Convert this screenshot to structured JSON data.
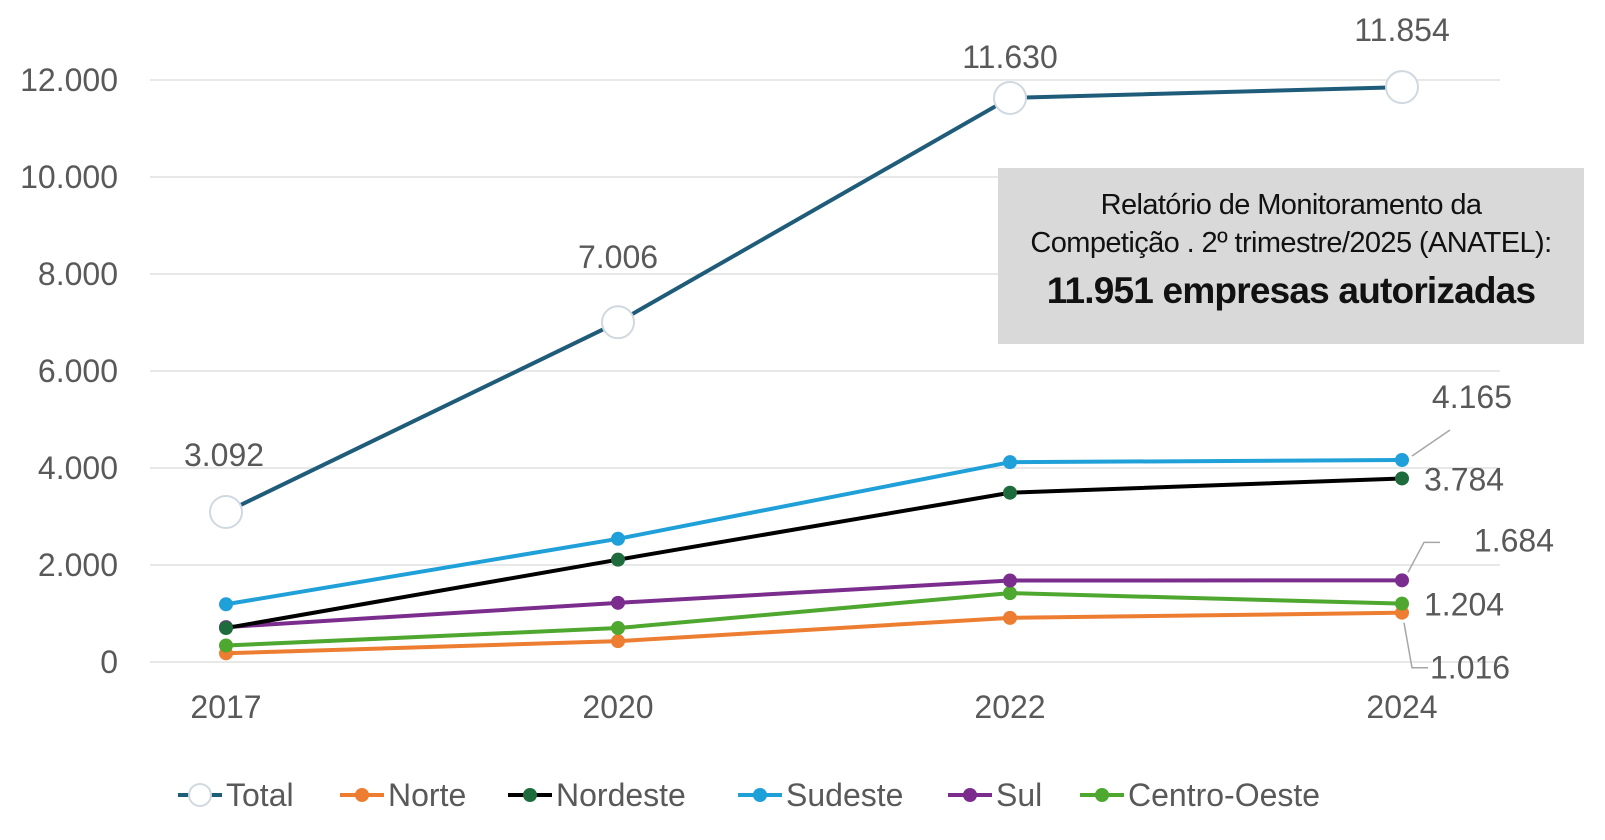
{
  "chart_data": {
    "type": "line",
    "categories": [
      "2017",
      "2020",
      "2022",
      "2024"
    ],
    "ylim": [
      0,
      12000
    ],
    "yticks": [
      0,
      2000,
      4000,
      6000,
      8000,
      10000,
      12000
    ],
    "ytick_labels": [
      "0",
      "2.000",
      "4.000",
      "6.000",
      "8.000",
      "10.000",
      "12.000"
    ],
    "grid": true,
    "legend_position": "bottom",
    "series": [
      {
        "name": "Total",
        "color": "#1f5c7a",
        "marker": "hollow-circle",
        "values": [
          3092,
          7006,
          11630,
          11854
        ],
        "labels": [
          "3.092",
          "7.006",
          "11.630",
          "11.854"
        ]
      },
      {
        "name": "Norte",
        "color": "#ed7d31",
        "marker": "circle",
        "values": [
          180,
          430,
          910,
          1016
        ],
        "labels": [
          null,
          null,
          null,
          "1.016"
        ]
      },
      {
        "name": "Nordeste",
        "color": "#000000",
        "marker_color": "#1e6b3c",
        "marker": "circle",
        "values": [
          700,
          2110,
          3490,
          3784
        ],
        "labels": [
          null,
          null,
          null,
          "3.784"
        ]
      },
      {
        "name": "Sudeste",
        "color": "#20a0d8",
        "marker": "circle",
        "values": [
          1190,
          2540,
          4120,
          4165
        ],
        "labels": [
          null,
          null,
          null,
          "4.165"
        ]
      },
      {
        "name": "Sul",
        "color": "#7b2d8e",
        "marker": "circle",
        "values": [
          720,
          1220,
          1680,
          1684
        ],
        "labels": [
          null,
          null,
          null,
          "1.684"
        ]
      },
      {
        "name": "Centro-Oeste",
        "color": "#4ea72e",
        "marker": "circle",
        "values": [
          340,
          700,
          1420,
          1204
        ],
        "labels": [
          null,
          null,
          null,
          "1.204"
        ]
      }
    ]
  },
  "note": {
    "line1": "Relatório de Monitoramento da",
    "line2": "Competição . 2º trimestre/2025 (ANATEL):",
    "highlight": "11.951 empresas autorizadas"
  }
}
